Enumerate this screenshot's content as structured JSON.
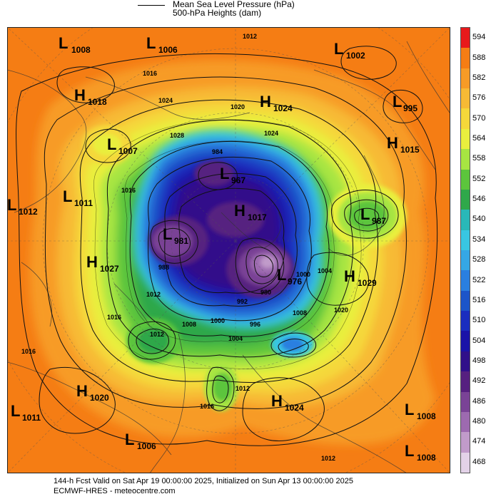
{
  "legend": {
    "line1": "Mean Sea Level Pressure (hPa)",
    "line2": "500-hPa Heights (dam)"
  },
  "colorbar": {
    "labels": [
      "594",
      "588",
      "582",
      "576",
      "570",
      "564",
      "558",
      "552",
      "546",
      "540",
      "534",
      "528",
      "522",
      "516",
      "510",
      "504",
      "498",
      "492",
      "486",
      "480",
      "474",
      "468"
    ],
    "colors": [
      "#e8191b",
      "#f57d14",
      "#f79b26",
      "#f7ba35",
      "#f5d83a",
      "#e9ef3e",
      "#a7e542",
      "#5cc53c",
      "#2fa84a",
      "#29b8b8",
      "#38c6e2",
      "#35a7e5",
      "#2a7fe0",
      "#1c55c9",
      "#1a2dbf",
      "#1a13a8",
      "#30108a",
      "#562080",
      "#7a4396",
      "#9d6ab0",
      "#c19bca",
      "#e3d2e8"
    ]
  },
  "pressure_centers": [
    {
      "type": "L",
      "value": "1008"
    },
    {
      "type": "L",
      "value": "1006"
    },
    {
      "type": "L",
      "value": "1002"
    },
    {
      "type": "H",
      "value": "1018"
    },
    {
      "type": "H",
      "value": "1024"
    },
    {
      "type": "L",
      "value": "995"
    },
    {
      "type": "L",
      "value": "1007"
    },
    {
      "type": "H",
      "value": "1015"
    },
    {
      "type": "L",
      "value": "967"
    },
    {
      "type": "L",
      "value": "1012"
    },
    {
      "type": "L",
      "value": "1011"
    },
    {
      "type": "H",
      "value": "1017"
    },
    {
      "type": "L",
      "value": "987"
    },
    {
      "type": "L",
      "value": "981"
    },
    {
      "type": "H",
      "value": "1027"
    },
    {
      "type": "L",
      "value": "976"
    },
    {
      "type": "H",
      "value": "1029"
    },
    {
      "type": "H",
      "value": "1020"
    },
    {
      "type": "H",
      "value": "1024"
    },
    {
      "type": "L",
      "value": "1011"
    },
    {
      "type": "L",
      "value": "1008"
    },
    {
      "type": "L",
      "value": "1006"
    },
    {
      "type": "L",
      "value": "1008"
    }
  ],
  "isobar_labels": [
    "1012",
    "1016",
    "1020",
    "1024",
    "1028",
    "1016",
    "1024",
    "1012",
    "1008",
    "1004",
    "1000",
    "996",
    "992",
    "988",
    "984",
    "980",
    "1016",
    "1020",
    "1012",
    "1016",
    "1000",
    "1004",
    "1008",
    "1016",
    "1012",
    "1012"
  ],
  "footer": {
    "line1": "144-h Fcst Valid on Sat Apr 19 00:00:00 2025, Initialized on Sun Apr 13 00:00:00 2025",
    "line2": "ECMWF-HRES - meteocentre.com"
  }
}
